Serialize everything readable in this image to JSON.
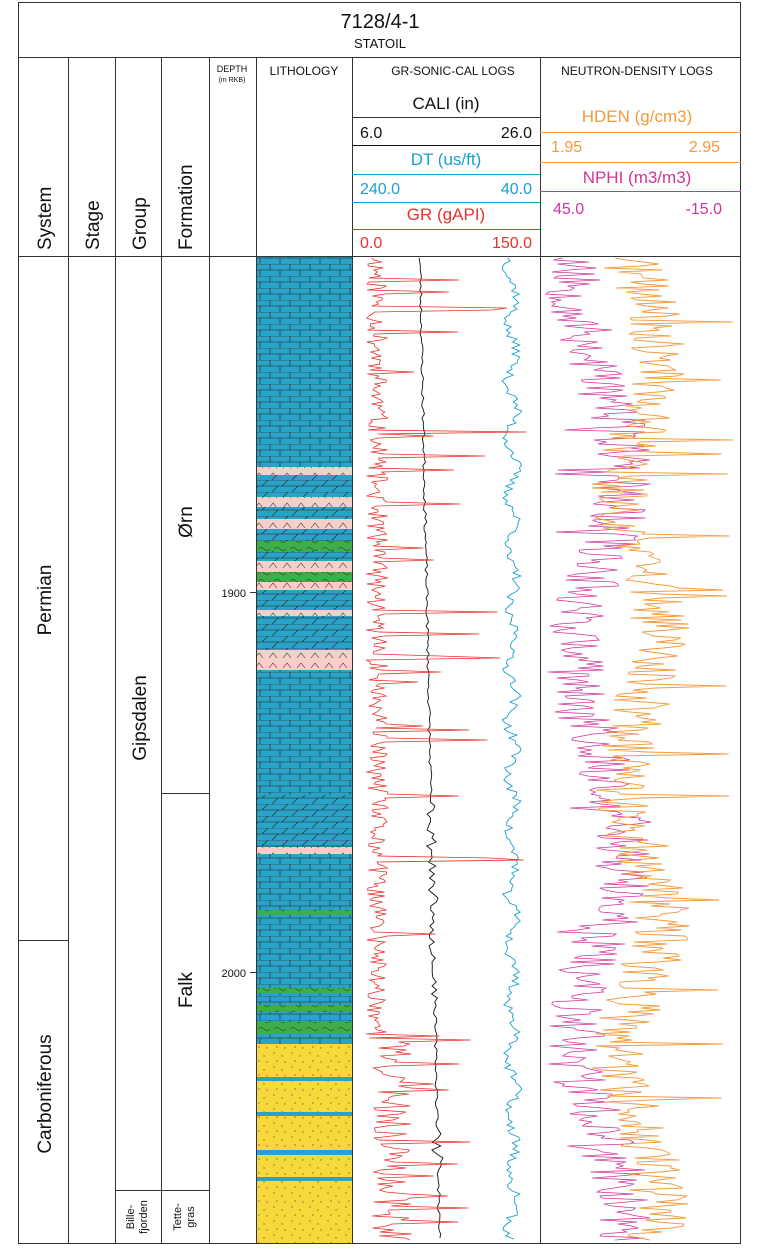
{
  "header": {
    "well": "7128/4-1",
    "operator": "STATOIL"
  },
  "columns": {
    "system": "System",
    "stage": "Stage",
    "group": "Group",
    "formation": "Formation",
    "depth": "DEPTH",
    "depth_unit": "(m RKB)",
    "lithology": "LITHOLOGY",
    "gr_sonic": "GR-SONIC-CAL LOGS",
    "neutron_density": "NEUTRON-DENSITY LOGS"
  },
  "curves": {
    "cali": {
      "label": "CALI (in)",
      "min": "6.0",
      "max": "26.0",
      "color": "#111111"
    },
    "dt": {
      "label": "DT (us/ft)",
      "min": "240.0",
      "max": "40.0",
      "color": "#1a9fd0"
    },
    "gr": {
      "label": "GR (gAPI)",
      "min": "0.0",
      "max": "150.0",
      "color": "#e8322c"
    },
    "hden": {
      "label": "HDEN (g/cm3)",
      "min": "1.95",
      "max": "2.95",
      "color": "#f39a3c"
    },
    "nphi": {
      "label": "NPHI (m3/m3)",
      "min": "45.0",
      "max": "-15.0",
      "color": "#d2359a"
    }
  },
  "stratigraphy": {
    "systems": [
      "Permian",
      "Carboniferous"
    ],
    "groups": [
      "Gipsdalen",
      "Bille-",
      "fjorden"
    ],
    "formations": [
      "Ørn",
      "Falk",
      "Tette-",
      "gras"
    ]
  },
  "depth_ticks": [
    "1900",
    "2000"
  ],
  "colors": {
    "limestone": "#2aa3c8",
    "anhydrite": "#f5cfc8",
    "shale": "#3fae4a",
    "sandstone": "#f7d93c"
  }
}
